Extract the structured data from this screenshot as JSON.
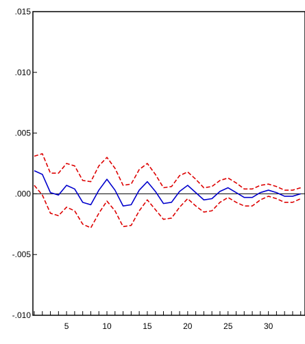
{
  "chart_data": {
    "type": "line",
    "title": "",
    "xlabel": "",
    "ylabel": "",
    "xlim": [
      1,
      34
    ],
    "ylim": [
      -0.01,
      0.015
    ],
    "grid": false,
    "legend": "none",
    "y_ticks": [
      {
        "value": 0.015,
        "label": ".015"
      },
      {
        "value": 0.01,
        "label": ".010"
      },
      {
        "value": 0.005,
        "label": ".005"
      },
      {
        "value": 0.0,
        "label": ".000"
      },
      {
        "value": -0.005,
        "label": "-.005"
      },
      {
        "value": -0.01,
        "label": "-.010"
      }
    ],
    "x_tick_labels": [
      {
        "value": 5,
        "label": "5"
      },
      {
        "value": 10,
        "label": "10"
      },
      {
        "value": 15,
        "label": "15"
      },
      {
        "value": 20,
        "label": "20"
      },
      {
        "value": 25,
        "label": "25"
      },
      {
        "value": 30,
        "label": "30"
      }
    ],
    "x": [
      1,
      2,
      3,
      4,
      5,
      6,
      7,
      8,
      9,
      10,
      11,
      12,
      13,
      14,
      15,
      16,
      17,
      18,
      19,
      20,
      21,
      22,
      23,
      24,
      25,
      26,
      27,
      28,
      29,
      30,
      31,
      32,
      33,
      34
    ],
    "series": [
      {
        "values": [
          0.0019,
          0.0016,
          0.0001,
          -0.0001,
          0.0007,
          0.0004,
          -0.0007,
          -0.0009,
          0.0003,
          0.0012,
          0.0003,
          -0.001,
          -0.0009,
          0.0003,
          0.001,
          0.0002,
          -0.0008,
          -0.0007,
          0.0002,
          0.0007,
          0.0001,
          -0.0005,
          -0.0004,
          0.0002,
          0.0005,
          0.0001,
          -0.0003,
          -0.0003,
          0.0001,
          0.0003,
          0.0001,
          -0.0002,
          -0.0002,
          0.0
        ],
        "color": "#0000cc",
        "style": "solid"
      },
      {
        "values": [
          0.0031,
          0.0033,
          0.0017,
          0.0017,
          0.0025,
          0.0023,
          0.0011,
          0.001,
          0.0023,
          0.003,
          0.0021,
          0.0007,
          0.0008,
          0.002,
          0.0025,
          0.0016,
          0.0005,
          0.0006,
          0.0015,
          0.0018,
          0.0012,
          0.0005,
          0.0006,
          0.0011,
          0.0013,
          0.0009,
          0.0004,
          0.0004,
          0.0007,
          0.0008,
          0.0006,
          0.0003,
          0.0003,
          0.0005
        ],
        "color": "#dd0000",
        "style": "dashed"
      },
      {
        "values": [
          0.0007,
          -0.0001,
          -0.0016,
          -0.0018,
          -0.0011,
          -0.0014,
          -0.0025,
          -0.0028,
          -0.0016,
          -0.0006,
          -0.0014,
          -0.0027,
          -0.0026,
          -0.0014,
          -0.0005,
          -0.0013,
          -0.0021,
          -0.002,
          -0.0011,
          -0.0004,
          -0.001,
          -0.0015,
          -0.0014,
          -0.0007,
          -0.0003,
          -0.0007,
          -0.001,
          -0.001,
          -0.0005,
          -0.0002,
          -0.0004,
          -0.0007,
          -0.0007,
          -0.0004
        ],
        "color": "#dd0000",
        "style": "dashed"
      }
    ]
  }
}
